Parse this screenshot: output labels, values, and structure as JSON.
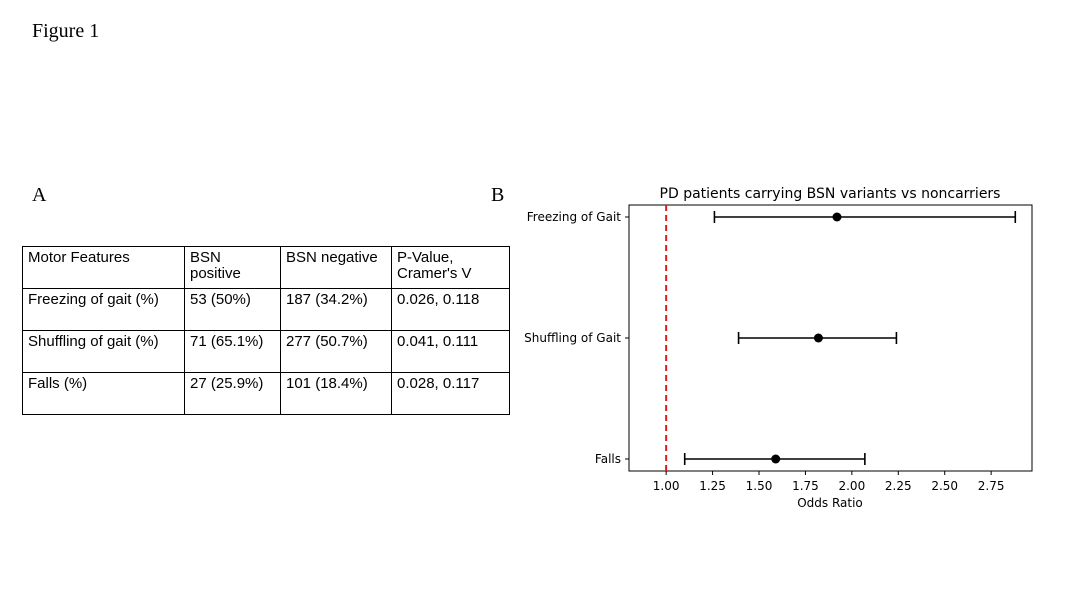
{
  "figure": {
    "title": "Figure 1"
  },
  "panel_a": {
    "label": "A",
    "table": {
      "headers": [
        "Motor Features",
        "BSN positive",
        "BSN negative",
        "P-Value, Cramer's V"
      ],
      "rows": [
        [
          "Freezing of gait (%)",
          "53 (50%)",
          "187 (34.2%)",
          "0.026, 0.118"
        ],
        [
          "Shuffling of gait (%)",
          "71 (65.1%)",
          "277 (50.7%)",
          "0.041, 0.111"
        ],
        [
          "Falls (%)",
          "27 (25.9%)",
          "101 (18.4%)",
          "0.028, 0.117"
        ]
      ]
    }
  },
  "panel_b": {
    "label": "B"
  },
  "chart_data": {
    "type": "scatter",
    "title": "PD patients carrying BSN variants vs noncarriers",
    "xlabel": "Odds Ratio",
    "ylabel": "",
    "categories": [
      "Freezing of Gait",
      "Shuffling of Gait",
      "Falls"
    ],
    "points": [
      {
        "label": "Freezing of Gait",
        "or": 1.92,
        "ci_low": 1.26,
        "ci_high": 2.88
      },
      {
        "label": "Shuffling of Gait",
        "or": 1.82,
        "ci_low": 1.39,
        "ci_high": 2.24
      },
      {
        "label": "Falls",
        "or": 1.59,
        "ci_low": 1.1,
        "ci_high": 2.07
      }
    ],
    "reference_line": 1.0,
    "reference_color": "#e31a1c",
    "xlim": [
      0.8,
      2.97
    ],
    "xticks": [
      "1.00",
      "1.25",
      "1.50",
      "1.75",
      "2.00",
      "2.25",
      "2.50",
      "2.75"
    ],
    "grid": false,
    "legend": "none"
  }
}
